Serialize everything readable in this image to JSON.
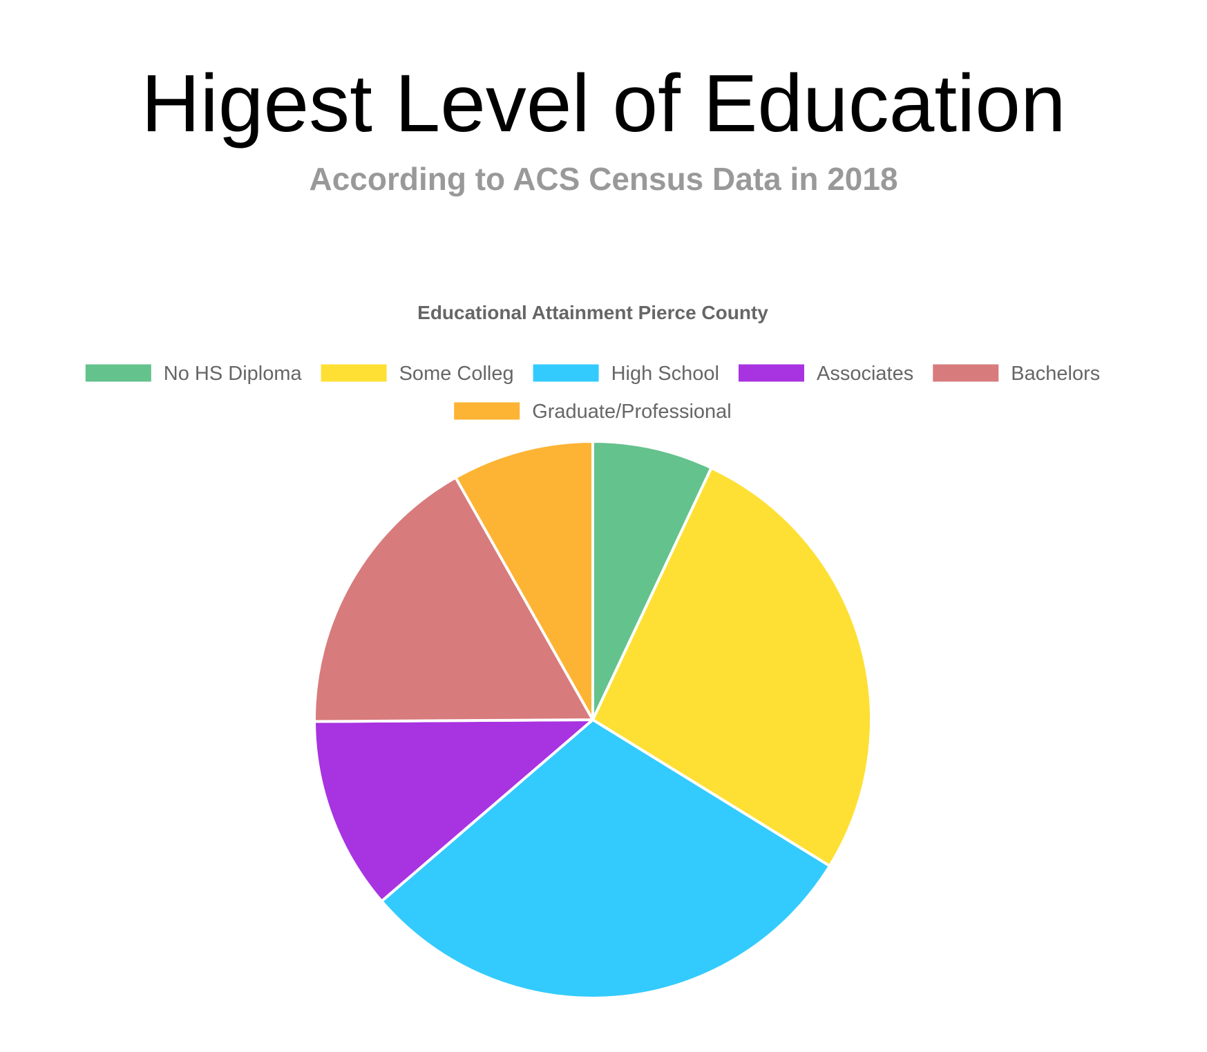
{
  "page": {
    "title": "Higest Level of Education",
    "subtitle": "According to ACS Census Data in 2018"
  },
  "chart_data": {
    "type": "pie",
    "title": "Educational Attainment Pierce County",
    "legend": "top",
    "categories": [
      "No HS Diploma",
      "Some Colleg",
      "High School",
      "Associates",
      "Bachelors",
      "Graduate/Professional"
    ],
    "values": [
      7.0,
      26.8,
      29.9,
      11.2,
      16.9,
      8.2
    ],
    "colors": [
      "#64c28d",
      "#fee034",
      "#33cbfd",
      "#a833e0",
      "#d87b7c",
      "#fdb434"
    ]
  }
}
